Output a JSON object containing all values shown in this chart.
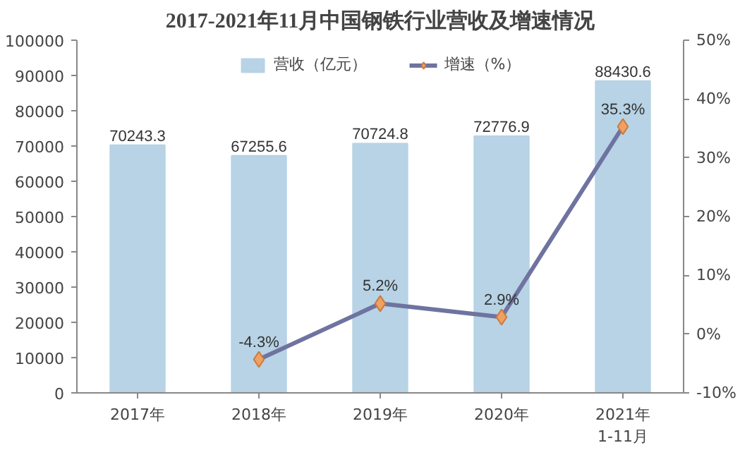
{
  "chart_data": {
    "type": "bar",
    "title": "2017-2021年11月中国钢铁行业营收及增速情况",
    "categories": [
      "2017年",
      "2018年",
      "2019年",
      "2020年",
      "2021年\n1-11月"
    ],
    "series": [
      {
        "name": "营收（亿元）",
        "color": "#b7d3e5",
        "values": [
          70243.3,
          67255.6,
          70724.8,
          72776.9,
          88430.6
        ],
        "value_labels": [
          "70243.3",
          "67255.6",
          "70724.8",
          "72776.9",
          "88430.6"
        ]
      },
      {
        "name": "增速（%）",
        "type": "line",
        "axis": "y2",
        "color": "#6f73a0",
        "marker": "diamond",
        "values": [
          null,
          -4.3,
          5.2,
          2.9,
          35.3
        ],
        "value_labels": [
          null,
          "-4.3%",
          "5.2%",
          "2.9%",
          "35.3%"
        ]
      }
    ],
    "ylim": [
      0,
      100000
    ],
    "yticks": [
      0,
      10000,
      20000,
      30000,
      40000,
      50000,
      60000,
      70000,
      80000,
      90000,
      100000
    ],
    "y2lim": [
      -10,
      50
    ],
    "y2ticks": [
      {
        "value": -10,
        "label": "-10%"
      },
      {
        "value": 0,
        "label": "0%"
      },
      {
        "value": 10,
        "label": "10%"
      },
      {
        "value": 20,
        "label": "20%"
      },
      {
        "value": 30,
        "label": "30%"
      },
      {
        "value": 40,
        "label": "40%"
      },
      {
        "value": 50,
        "label": "50%"
      }
    ],
    "grid": false,
    "legend": "top"
  }
}
